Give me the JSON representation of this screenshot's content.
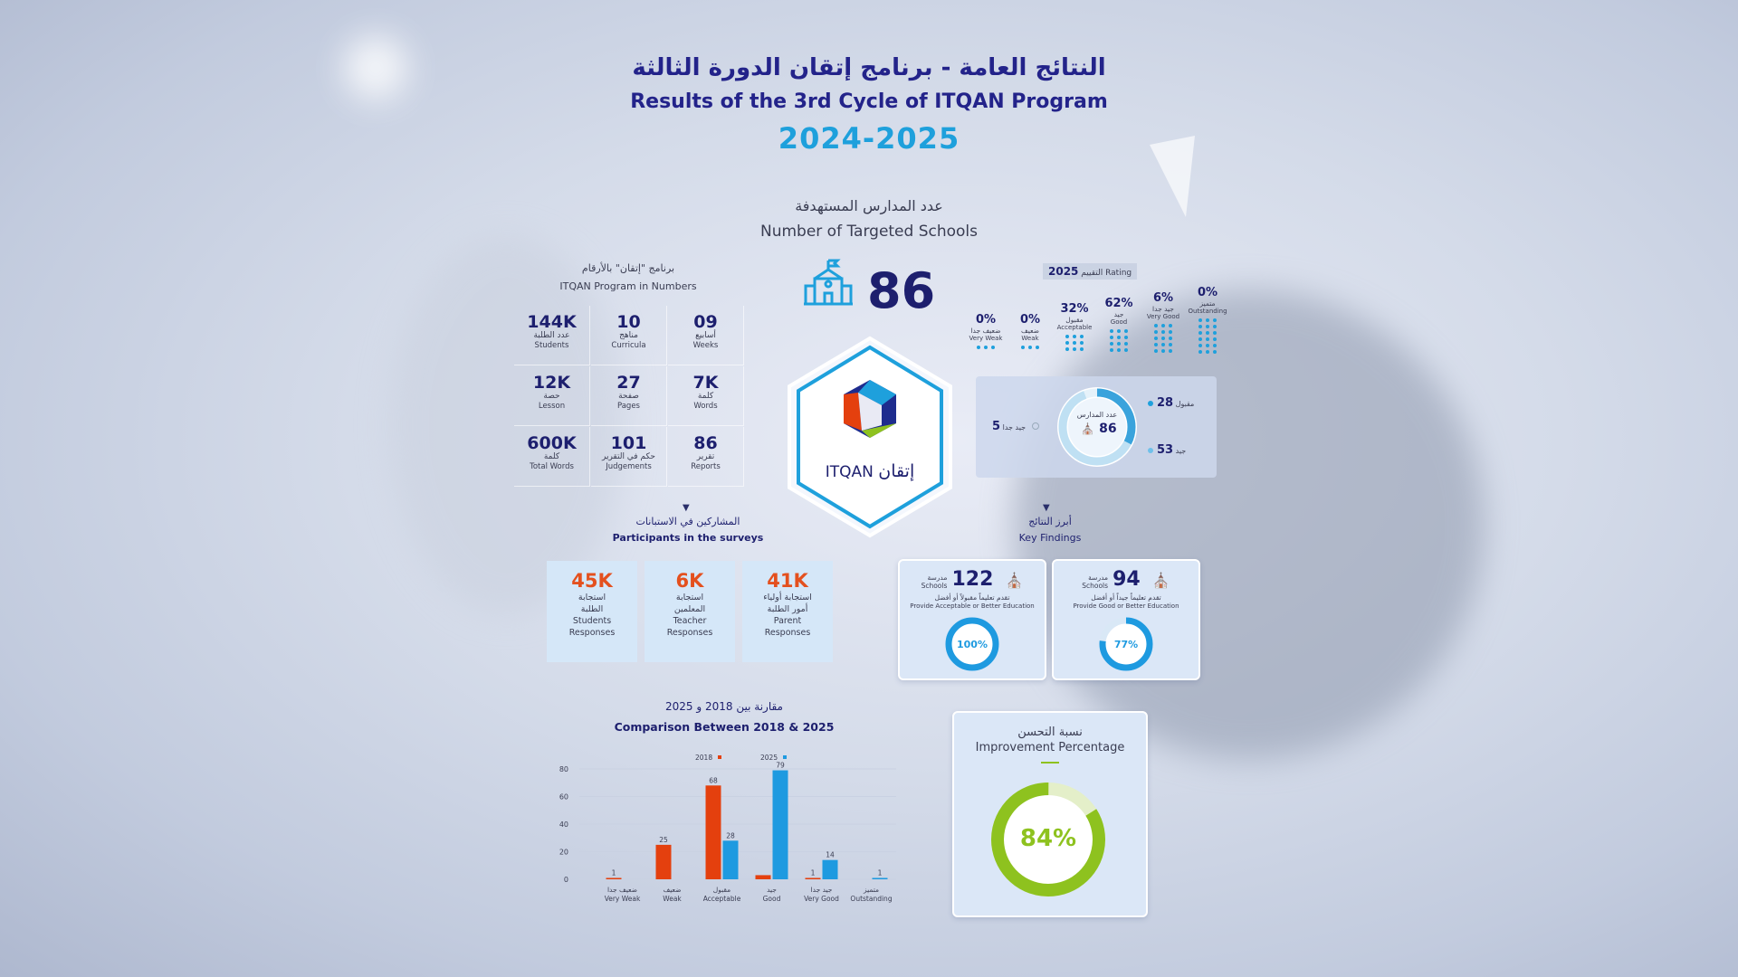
{
  "header": {
    "title_ar": "النتائج العامة - برنامج إتقان الدورة الثالثة",
    "title_en": "Results of the 3rd Cycle of ITQAN Program",
    "years": "2024-2025"
  },
  "targeted": {
    "label_ar": "عدد المدارس المستهدفة",
    "label_en": "Number of Targeted Schools",
    "value": "86"
  },
  "numbers": {
    "label_ar": "برنامج \"إتقان\" بالأرقام",
    "label_en": "ITQAN Program in Numbers",
    "items": [
      {
        "value": "144K",
        "ar": "عدد الطلبة",
        "en": "Students"
      },
      {
        "value": "10",
        "ar": "مناهج",
        "en": "Curricula"
      },
      {
        "value": "09",
        "ar": "أسابيع",
        "en": "Weeks"
      },
      {
        "value": "12K",
        "ar": "حصة",
        "en": "Lesson"
      },
      {
        "value": "27",
        "ar": "صفحة",
        "en": "Pages"
      },
      {
        "value": "7K",
        "ar": "كلمة",
        "en": "Words"
      },
      {
        "value": "600K",
        "ar": "كلمة",
        "en": "Total Words"
      },
      {
        "value": "101",
        "ar": "حكم في التقرير",
        "en": "Judgements"
      },
      {
        "value": "86",
        "ar": "تقرير",
        "en": "Reports"
      }
    ]
  },
  "rating": {
    "year": "2025",
    "label_ar": "التقييم",
    "label_en": "Rating",
    "items": [
      {
        "percent": "0%",
        "ar": "ضعيف جدا",
        "en": "Very Weak",
        "dot_rows": 1
      },
      {
        "percent": "0%",
        "ar": "ضعيف",
        "en": "Weak",
        "dot_rows": 1
      },
      {
        "percent": "32%",
        "ar": "مقبول",
        "en": "Acceptable",
        "dot_rows": 3
      },
      {
        "percent": "62%",
        "ar": "جيد",
        "en": "Good",
        "dot_rows": 4
      },
      {
        "percent": "6%",
        "ar": "جيد جدا",
        "en": "Very Good",
        "dot_rows": 5
      },
      {
        "percent": "0%",
        "ar": "متميز",
        "en": "Outstanding",
        "dot_rows": 6
      }
    ]
  },
  "school_donut": {
    "center_ar": "عدد المدارس",
    "center_value": "86",
    "segments": [
      {
        "value": "28",
        "label": "مقبول",
        "count": 28
      },
      {
        "value": "53",
        "label": "جيد",
        "count": 53
      },
      {
        "value": "5",
        "label": "جيد جدا",
        "count": 5
      }
    ],
    "colors": {
      "main": "#3aa3dc",
      "light": "#bfe0f3",
      "pale": "#e6f2fa"
    }
  },
  "logo": {
    "brand_latin": "ITQAN",
    "brand_ar": "إتقان"
  },
  "surveys": {
    "label_ar": "المشاركين في الاستبانات",
    "label_en": "Participants in the surveys",
    "items": [
      {
        "value": "45K",
        "ar1": "استجابة",
        "ar2": "الطلبة",
        "en1": "Students",
        "en2": "Responses"
      },
      {
        "value": "6K",
        "ar1": "استجابة",
        "ar2": "المعلمين",
        "en1": "Teacher",
        "en2": "Responses"
      },
      {
        "value": "41K",
        "ar1": "استجابة أولياء",
        "ar2": "أمور الطلبة",
        "en1": "Parent",
        "en2": "Responses"
      }
    ]
  },
  "key_findings": {
    "label_ar": "أبرز النتائج",
    "label_en": "Key Findings",
    "cards": [
      {
        "value": "122",
        "unit_ar": "مدرسة",
        "unit_en": "Schools",
        "desc_ar": "تقدم تعليماً مقبولاً أو أفضل",
        "desc_en": "Provide Acceptable or Better Education",
        "percent": "100%",
        "fraction": 1.0
      },
      {
        "value": "94",
        "unit_ar": "مدرسة",
        "unit_en": "Schools",
        "desc_ar": "تقدم تعليماً جيداً أو أفضل",
        "desc_en": "Provide Good or Better Education",
        "percent": "77%",
        "fraction": 0.77
      }
    ]
  },
  "improvement": {
    "label_ar": "نسبة التحسن",
    "label_en": "Improvement Percentage",
    "percent": "84%",
    "fraction": 0.84,
    "colors": {
      "ring": "#8ec21f",
      "track": "#e4efc9"
    }
  },
  "chart_data": {
    "type": "bar",
    "title_ar": "مقارنة بين 2018 و 2025",
    "title": "Comparison Between 2018 & 2025",
    "categories": [
      "Very Weak",
      "Weak",
      "Acceptable",
      "Good",
      "Very Good",
      "Outstanding"
    ],
    "categories_ar": [
      "ضعيف جدا",
      "ضعيف",
      "مقبول",
      "جيد",
      "جيد جدا",
      "متميز"
    ],
    "series": [
      {
        "name": "2018",
        "color": "#e4400e",
        "values": [
          1,
          25,
          68,
          3,
          1,
          0
        ],
        "labels": [
          "1",
          "25",
          "68",
          "",
          "1",
          ""
        ]
      },
      {
        "name": "2025",
        "color": "#1e9ae0",
        "values": [
          0,
          0,
          28,
          79,
          14,
          1
        ],
        "labels": [
          "",
          "",
          "28",
          "79",
          "14",
          "1"
        ]
      }
    ],
    "ylim": [
      0,
      80
    ],
    "yticks": [
      0,
      20,
      40,
      60,
      80
    ],
    "grid": true,
    "legend": "top-center"
  }
}
